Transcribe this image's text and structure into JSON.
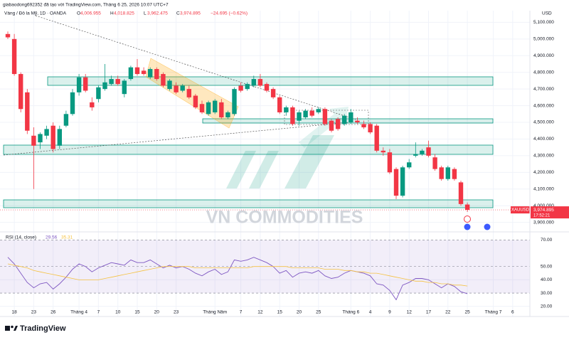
{
  "header": {
    "attribution": "giabaodong692352 đã tạo với TradingView.com, Tháng 6 25, 2026 10:07 UTC+7",
    "symbol": "Vàng / Đô la Mỹ, 1D · OANDA",
    "ohlc": [
      {
        "letter": "O",
        "value": 4006.955,
        "label": "4,006.955"
      },
      {
        "letter": "H",
        "value": 4018.825,
        "label": "4,018.825"
      },
      {
        "letter": "L",
        "value": 3962.475,
        "label": "3,962.475"
      },
      {
        "letter": "C",
        "value": 3974.895,
        "label": "3,974.895"
      }
    ],
    "change": {
      "value": -24.695,
      "label": "−24.695 (−0.62%)"
    },
    "currency": "USD"
  },
  "watermark": "VN COMMODITIES",
  "footer": {
    "brand": "TradingView"
  },
  "chart_data": [
    {
      "type": "candlestick",
      "up_color": "#089981",
      "down_color": "#f23645",
      "grid": true,
      "categories": [
        null,
        "18",
        null,
        null,
        "23",
        null,
        null,
        "26",
        null,
        null,
        null,
        "Tháng 4",
        null,
        null,
        "7",
        null,
        null,
        "10",
        null,
        null,
        "15",
        null,
        null,
        "20",
        null,
        null,
        "23",
        null,
        null,
        null,
        null,
        null,
        "Tháng Năm",
        null,
        null,
        null,
        "7",
        null,
        null,
        "12",
        null,
        null,
        "15",
        null,
        null,
        "20",
        null,
        null,
        "25",
        null,
        null,
        null,
        null,
        "Tháng 6",
        null,
        null,
        "4",
        null,
        null,
        "9",
        null,
        null,
        "12",
        null,
        null,
        "17",
        null,
        null,
        "22",
        null,
        null,
        "25",
        null,
        null,
        null,
        "Tháng 7",
        null,
        null,
        "6",
        null,
        null
      ],
      "open": [
        5030,
        5000,
        4790,
        4680,
        4420,
        4380,
        4420,
        4480,
        4360,
        4480,
        4550,
        4680,
        4770,
        4620,
        4640,
        4700,
        4730,
        4760,
        4670,
        4760,
        4830,
        4810,
        4770,
        4820,
        4790,
        4700,
        4720,
        4690,
        4700,
        4660,
        4610,
        4550,
        4560,
        4620,
        4530,
        4550,
        4720,
        4700,
        4720,
        4760,
        4730,
        4700,
        4650,
        4560,
        4590,
        4510,
        4530,
        4570,
        4560,
        4580,
        4510,
        4520,
        4490,
        4500,
        4510,
        4490,
        4490,
        4480,
        4330,
        4320,
        4220,
        4060,
        4230,
        4300,
        4310,
        4350,
        4290,
        4230,
        4160,
        4220,
        4140,
        4006.955,
        null,
        null,
        null,
        null,
        null,
        null,
        null,
        null,
        null
      ],
      "high": [
        5045,
        5030,
        4800,
        4700,
        4470,
        4440,
        4480,
        4500,
        4480,
        4570,
        4700,
        4790,
        4790,
        4650,
        4720,
        4850,
        4780,
        4780,
        4760,
        4840,
        4880,
        4830,
        4830,
        4830,
        4800,
        4760,
        4740,
        4730,
        4720,
        4670,
        4630,
        4630,
        4640,
        4640,
        4570,
        4710,
        4740,
        4740,
        4780,
        4790,
        4740,
        4710,
        4660,
        4600,
        4600,
        4570,
        4580,
        4590,
        4590,
        4590,
        4520,
        4530,
        4550,
        4580,
        4530,
        4510,
        4500,
        4490,
        4350,
        4340,
        4230,
        4240,
        4280,
        4380,
        4340,
        4390,
        4310,
        4240,
        4240,
        4230,
        4150,
        4018.825,
        null,
        null,
        null,
        null,
        null,
        null,
        null,
        null,
        null
      ],
      "low": [
        5000,
        4780,
        4560,
        4430,
        4100,
        4340,
        4400,
        4320,
        4340,
        4470,
        4540,
        4660,
        4680,
        4570,
        4620,
        4690,
        4720,
        4720,
        4650,
        4750,
        4780,
        4780,
        4760,
        4750,
        4710,
        4690,
        4670,
        4680,
        4640,
        4580,
        4550,
        4540,
        4550,
        4520,
        4520,
        4540,
        4680,
        4690,
        4710,
        4710,
        4680,
        4640,
        4550,
        4540,
        4480,
        4480,
        4520,
        4530,
        4550,
        4480,
        4440,
        4450,
        4480,
        4490,
        4490,
        4460,
        4430,
        4320,
        4300,
        4190,
        4040,
        4050,
        4220,
        4290,
        4300,
        4290,
        4210,
        4150,
        4150,
        4150,
        4000,
        3962.475,
        null,
        null,
        null,
        null,
        null,
        null,
        null,
        null,
        null
      ],
      "close": [
        5010,
        4790,
        4580,
        4450,
        4360,
        4430,
        4460,
        4340,
        4460,
        4550,
        4680,
        4770,
        4690,
        4590,
        4710,
        4740,
        4760,
        4730,
        4750,
        4830,
        4790,
        4790,
        4820,
        4760,
        4720,
        4750,
        4680,
        4720,
        4650,
        4590,
        4560,
        4620,
        4630,
        4530,
        4560,
        4700,
        4690,
        4730,
        4760,
        4720,
        4690,
        4650,
        4560,
        4590,
        4490,
        4560,
        4570,
        4540,
        4580,
        4490,
        4450,
        4460,
        4540,
        4560,
        4500,
        4470,
        4440,
        4330,
        4320,
        4200,
        4060,
        4230,
        4260,
        4310,
        4330,
        4300,
        4220,
        4160,
        4230,
        4160,
        4010,
        3974.895,
        null,
        null,
        null,
        null,
        null,
        null,
        null,
        null,
        null
      ],
      "ylim": [
        3860,
        5170
      ],
      "yticks": [
        {
          "value": 3900,
          "label": "3,900.000"
        },
        {
          "value": 4000,
          "label": "4,000.000"
        },
        {
          "value": 4100,
          "label": "4,100.000"
        },
        {
          "value": 4200,
          "label": "4,200.000"
        },
        {
          "value": 4300,
          "label": "4,300.000"
        },
        {
          "value": 4400,
          "label": "4,400.000"
        },
        {
          "value": 4500,
          "label": "4,500.000"
        },
        {
          "value": 4600,
          "label": "4,600.000"
        },
        {
          "value": 4700,
          "label": "4,700.000"
        },
        {
          "value": 4800,
          "label": "4,800.000"
        },
        {
          "value": 4900,
          "label": "4,900.000"
        },
        {
          "value": 5000,
          "label": "5,000.000"
        },
        {
          "value": 5100,
          "label": "5,100.000"
        }
      ],
      "last_price": {
        "symbol": "XAUUSD",
        "price": {
          "value": 3974.895,
          "label": "3,974.895"
        },
        "countdown": "17:52:21",
        "color": "#f23645"
      }
    },
    {
      "type": "line",
      "title": "RSI (14, close)",
      "band": [
        30,
        70
      ],
      "band_color": "#7e57c2",
      "series": [
        {
          "color": "#7e57c2",
          "last": 29.56,
          "values": [
            57,
            52,
            45,
            38,
            34,
            37,
            38,
            33,
            37,
            42,
            48,
            52,
            50,
            46,
            49,
            51,
            53,
            52,
            51,
            55,
            53,
            53,
            55,
            52,
            49,
            51,
            49,
            50,
            48,
            45,
            43,
            46,
            48,
            44,
            46,
            55,
            54,
            55,
            57,
            55,
            53,
            50,
            45,
            47,
            42,
            45,
            46,
            45,
            47,
            43,
            41,
            42,
            45,
            47,
            46,
            45,
            43,
            37,
            36,
            32,
            25,
            36,
            38,
            41,
            41,
            40,
            37,
            34,
            37,
            35,
            31,
            29.56,
            null,
            null,
            null,
            null,
            null,
            null,
            null,
            null,
            null
          ]
        },
        {
          "color": "#f5c242",
          "last": 35.31,
          "values": [
            52,
            51,
            50,
            49,
            47,
            46,
            45,
            44,
            43,
            42,
            41,
            40,
            40,
            40,
            40,
            41,
            42,
            43,
            44,
            45,
            46,
            47,
            48,
            49,
            50,
            50,
            50,
            50,
            50,
            49,
            49,
            49,
            49,
            49,
            49,
            49,
            49,
            49,
            50,
            50,
            50,
            50,
            50,
            50,
            49,
            49,
            49,
            49,
            49,
            48,
            48,
            48,
            47,
            47,
            46,
            46,
            45,
            45,
            44,
            43,
            42,
            41,
            40,
            39,
            39,
            38,
            38,
            37,
            37,
            36,
            36,
            35.31,
            null,
            null,
            null,
            null,
            null,
            null,
            null,
            null,
            null
          ]
        }
      ],
      "ylim": [
        15,
        74
      ],
      "yticks": [
        {
          "value": 70,
          "label": "70.00"
        },
        {
          "value": 50,
          "label": "50.00"
        },
        {
          "value": 40,
          "label": "40.00"
        },
        {
          "value": 30,
          "label": "30.00"
        },
        {
          "value": 20,
          "label": "20.00"
        }
      ]
    }
  ]
}
